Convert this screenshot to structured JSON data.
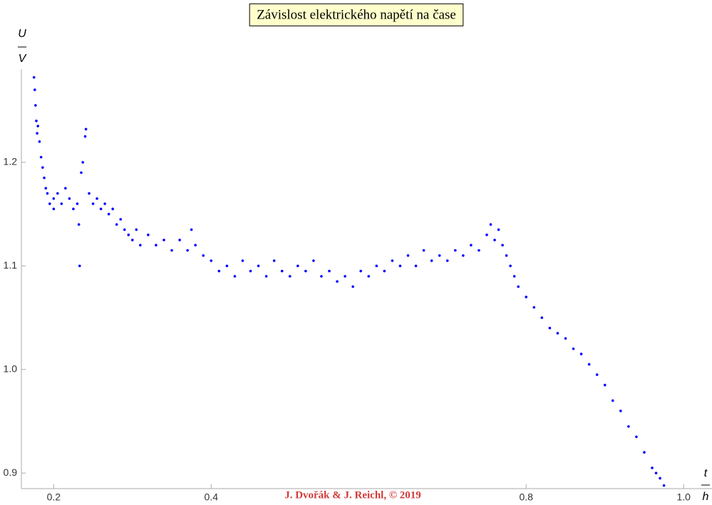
{
  "chart_data": {
    "type": "scatter",
    "title": "Závislost elektrického napětí na čase",
    "y_label_top": "U",
    "y_label_bottom": "V",
    "x_label_top": "t",
    "x_label_bottom": "h",
    "watermark": "J. Dvořák & J. Reichl, © 2019",
    "color": "#0000ff",
    "xlim": [
      0.159,
      1.036
    ],
    "ylim": [
      0.885,
      1.29
    ],
    "xticks": [
      0.2,
      0.4,
      0.8,
      {
        "value": 1,
        "label": "1.0"
      }
    ],
    "yticks": [
      0.9,
      {
        "value": 1,
        "label": "1.0"
      },
      1.1,
      1.2
    ],
    "x": [
      0.175,
      0.176,
      0.177,
      0.178,
      0.179,
      0.18,
      0.182,
      0.184,
      0.186,
      0.188,
      0.19,
      0.192,
      0.195,
      0.2,
      0.2,
      0.205,
      0.21,
      0.215,
      0.22,
      0.225,
      0.23,
      0.232,
      0.233,
      0.235,
      0.237,
      0.24,
      0.241,
      0.245,
      0.25,
      0.255,
      0.26,
      0.265,
      0.27,
      0.275,
      0.28,
      0.285,
      0.29,
      0.295,
      0.3,
      0.305,
      0.31,
      0.32,
      0.33,
      0.34,
      0.35,
      0.36,
      0.37,
      0.375,
      0.38,
      0.39,
      0.4,
      0.41,
      0.42,
      0.43,
      0.44,
      0.45,
      0.46,
      0.47,
      0.48,
      0.49,
      0.5,
      0.51,
      0.52,
      0.53,
      0.54,
      0.55,
      0.56,
      0.57,
      0.58,
      0.59,
      0.6,
      0.61,
      0.62,
      0.63,
      0.64,
      0.65,
      0.66,
      0.67,
      0.68,
      0.69,
      0.7,
      0.71,
      0.72,
      0.73,
      0.74,
      0.75,
      0.755,
      0.76,
      0.765,
      0.77,
      0.775,
      0.78,
      0.785,
      0.79,
      0.8,
      0.81,
      0.82,
      0.83,
      0.84,
      0.85,
      0.86,
      0.87,
      0.88,
      0.89,
      0.9,
      0.91,
      0.92,
      0.93,
      0.94,
      0.95,
      0.96,
      0.965,
      0.97,
      0.975
    ],
    "values": [
      1.282,
      1.27,
      1.255,
      1.24,
      1.228,
      1.235,
      1.22,
      1.205,
      1.195,
      1.185,
      1.175,
      1.17,
      1.16,
      1.165,
      1.155,
      1.17,
      1.16,
      1.175,
      1.165,
      1.155,
      1.16,
      1.14,
      1.1,
      1.19,
      1.2,
      1.225,
      1.232,
      1.17,
      1.16,
      1.165,
      1.155,
      1.16,
      1.15,
      1.155,
      1.14,
      1.145,
      1.135,
      1.13,
      1.125,
      1.135,
      1.12,
      1.13,
      1.12,
      1.125,
      1.115,
      1.125,
      1.115,
      1.135,
      1.12,
      1.11,
      1.105,
      1.095,
      1.1,
      1.09,
      1.105,
      1.095,
      1.1,
      1.09,
      1.105,
      1.095,
      1.09,
      1.1,
      1.095,
      1.105,
      1.09,
      1.095,
      1.085,
      1.09,
      1.08,
      1.095,
      1.09,
      1.1,
      1.095,
      1.105,
      1.1,
      1.11,
      1.1,
      1.115,
      1.105,
      1.11,
      1.105,
      1.115,
      1.11,
      1.12,
      1.115,
      1.13,
      1.14,
      1.125,
      1.135,
      1.12,
      1.11,
      1.1,
      1.09,
      1.08,
      1.07,
      1.06,
      1.05,
      1.04,
      1.035,
      1.03,
      1.02,
      1.015,
      1.005,
      0.995,
      0.985,
      0.97,
      0.96,
      0.945,
      0.935,
      0.92,
      0.905,
      0.9,
      0.895,
      0.888
    ]
  }
}
